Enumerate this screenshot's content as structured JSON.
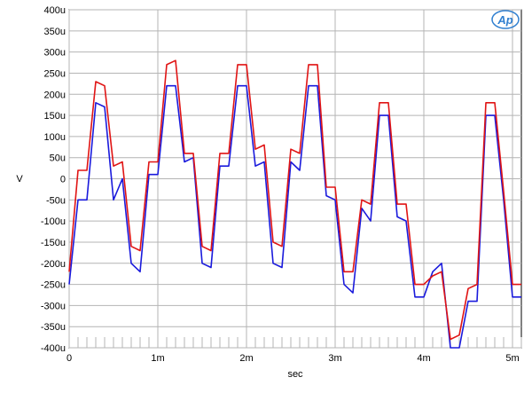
{
  "chart_data": {
    "type": "line",
    "title": "",
    "xlabel": "sec",
    "ylabel": "V",
    "xlim": [
      0,
      0.0051
    ],
    "ylim": [
      -0.0004,
      0.0004
    ],
    "grid": true,
    "xticks": [
      {
        "value": 0,
        "label": "0"
      },
      {
        "value": 0.001,
        "label": "1m"
      },
      {
        "value": 0.002,
        "label": "2m"
      },
      {
        "value": 0.003,
        "label": "3m"
      },
      {
        "value": 0.004,
        "label": "4m"
      },
      {
        "value": 0.005,
        "label": "5m"
      }
    ],
    "yticks": [
      {
        "value": 0.0004,
        "label": "400u"
      },
      {
        "value": 0.00035,
        "label": "350u"
      },
      {
        "value": 0.0003,
        "label": "300u"
      },
      {
        "value": 0.00025,
        "label": "250u"
      },
      {
        "value": 0.0002,
        "label": "200u"
      },
      {
        "value": 0.00015,
        "label": "150u"
      },
      {
        "value": 0.0001,
        "label": "100u"
      },
      {
        "value": 5e-05,
        "label": "50u"
      },
      {
        "value": 0,
        "label": "0"
      },
      {
        "value": -5e-05,
        "label": "-50u"
      },
      {
        "value": -0.0001,
        "label": "-100u"
      },
      {
        "value": -0.00015,
        "label": "-150u"
      },
      {
        "value": -0.0002,
        "label": "-200u"
      },
      {
        "value": -0.00025,
        "label": "-250u"
      },
      {
        "value": -0.0003,
        "label": "-300u"
      },
      {
        "value": -0.00035,
        "label": "-350u"
      },
      {
        "value": -0.0004,
        "label": "-400u"
      }
    ],
    "logo_text": "Ap",
    "series": [
      {
        "color": "#1a1adc",
        "x": [
          0,
          0.0001,
          0.0002,
          0.0003,
          0.0004,
          0.0005,
          0.0006,
          0.0007,
          0.0008,
          0.0009,
          0.001,
          0.0011,
          0.0012,
          0.0013,
          0.0014,
          0.0015,
          0.0016,
          0.0017,
          0.0018,
          0.0019,
          0.002,
          0.0021,
          0.0022,
          0.0023,
          0.0024,
          0.0025,
          0.0026,
          0.0027,
          0.0028,
          0.0029,
          0.003,
          0.0031,
          0.0032,
          0.0033,
          0.0034,
          0.0035,
          0.0036,
          0.0037,
          0.0038,
          0.0039,
          0.004,
          0.0041,
          0.0042,
          0.0043,
          0.0044,
          0.0045,
          0.0046,
          0.0047,
          0.0048,
          0.0049,
          0.005,
          0.0051
        ],
        "y": [
          -0.00025,
          -5e-05,
          -5e-05,
          0.00018,
          0.00017,
          -5e-05,
          0.0,
          -0.0002,
          -0.00022,
          1e-05,
          1e-05,
          0.00022,
          0.00022,
          4e-05,
          5e-05,
          -0.0002,
          -0.00021,
          3e-05,
          3e-05,
          0.00022,
          0.00022,
          3e-05,
          4e-05,
          -0.0002,
          -0.00021,
          4e-05,
          2e-05,
          0.00022,
          0.00022,
          -4e-05,
          -5e-05,
          -0.00025,
          -0.00027,
          -7e-05,
          -0.0001,
          0.00015,
          0.00015,
          -9e-05,
          -0.0001,
          -0.00028,
          -0.00028,
          -0.00022,
          -0.0002,
          -0.0004,
          -0.0004,
          -0.00029,
          -0.00029,
          0.00015,
          0.00015,
          -5e-05,
          -0.00028,
          -0.00028
        ]
      },
      {
        "color": "#e01414",
        "x": [
          0,
          0.0001,
          0.0002,
          0.0003,
          0.0004,
          0.0005,
          0.0006,
          0.0007,
          0.0008,
          0.0009,
          0.001,
          0.0011,
          0.0012,
          0.0013,
          0.0014,
          0.0015,
          0.0016,
          0.0017,
          0.0018,
          0.0019,
          0.002,
          0.0021,
          0.0022,
          0.0023,
          0.0024,
          0.0025,
          0.0026,
          0.0027,
          0.0028,
          0.0029,
          0.003,
          0.0031,
          0.0032,
          0.0033,
          0.0034,
          0.0035,
          0.0036,
          0.0037,
          0.0038,
          0.0039,
          0.004,
          0.0041,
          0.0042,
          0.0043,
          0.0044,
          0.0045,
          0.0046,
          0.0047,
          0.0048,
          0.0049,
          0.005,
          0.0051
        ],
        "y": [
          -0.00022,
          2e-05,
          2e-05,
          0.00023,
          0.00022,
          3e-05,
          4e-05,
          -0.00016,
          -0.00017,
          4e-05,
          4e-05,
          0.00027,
          0.00028,
          6e-05,
          6e-05,
          -0.00016,
          -0.00017,
          6e-05,
          6e-05,
          0.00027,
          0.00027,
          7e-05,
          8e-05,
          -0.00015,
          -0.00016,
          7e-05,
          6e-05,
          0.00027,
          0.00027,
          -2e-05,
          -2e-05,
          -0.00022,
          -0.00022,
          -5e-05,
          -6e-05,
          0.00018,
          0.00018,
          -6e-05,
          -6e-05,
          -0.00025,
          -0.00025,
          -0.00023,
          -0.00022,
          -0.00038,
          -0.00037,
          -0.00026,
          -0.00025,
          0.00018,
          0.00018,
          -3e-05,
          -0.00025,
          -0.00025
        ]
      }
    ]
  }
}
